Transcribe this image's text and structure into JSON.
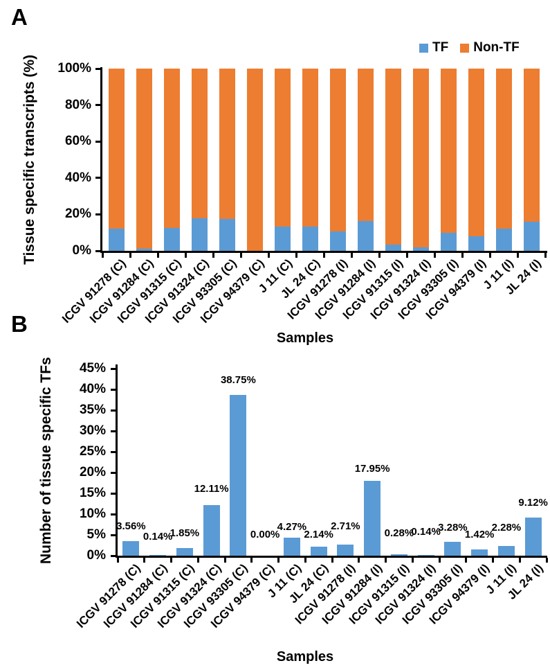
{
  "panels": {
    "a": {
      "label": "A"
    },
    "b": {
      "label": "B"
    }
  },
  "colors": {
    "tf": "#5B9BD5",
    "non_tf": "#ED7D31",
    "axis": "#000000",
    "text": "#000000",
    "background": "#FFFFFF"
  },
  "chart_data": [
    {
      "id": "tissue-specific-transcripts",
      "type": "bar",
      "subtype": "100-percent-stacked",
      "title": "",
      "ylabel": "Tissue specific transcripts (%)",
      "xlabel": "Samples",
      "ylim": [
        0,
        100
      ],
      "ytick_step": 20,
      "ytick_labels": [
        "0%",
        "20%",
        "40%",
        "60%",
        "80%",
        "100%"
      ],
      "grid": false,
      "legend_position": "top-right",
      "categories": [
        "ICGV 91278 (C)",
        "ICGV 91284 (C)",
        "ICGV 91315 (C)",
        "ICGV 91324 (C)",
        "ICGV 93305 (C)",
        "ICGV 94379 (C)",
        "J 11 (C)",
        "JL 24 (C)",
        "ICGV 91278 (I)",
        "ICGV 91284 (I)",
        "ICGV 91315 (I)",
        "ICGV 91324 (I)",
        "ICGV 93305 (I)",
        "ICGV 94379 (I)",
        "J 11 (I)",
        "JL 24 (I)"
      ],
      "series": [
        {
          "name": "TF",
          "color": "#5B9BD5",
          "values": [
            12,
            1,
            12.5,
            18,
            17.5,
            0,
            13.5,
            13.5,
            10.5,
            16.5,
            3.5,
            2,
            10,
            8,
            12,
            16
          ]
        },
        {
          "name": "Non-TF",
          "color": "#ED7D31",
          "values": [
            88,
            99,
            87.5,
            82,
            82.5,
            100,
            86.5,
            86.5,
            89.5,
            83.5,
            96.5,
            98,
            90,
            92,
            88,
            84
          ]
        }
      ]
    },
    {
      "id": "tissue-specific-tfs",
      "type": "bar",
      "title": "",
      "ylabel": "Number of tissue specific TFs",
      "xlabel": "Samples",
      "ylim": [
        0,
        45
      ],
      "ytick_step": 5,
      "ytick_labels": [
        "0%",
        "5%",
        "10%",
        "15%",
        "20%",
        "25%",
        "30%",
        "35%",
        "40%",
        "45%"
      ],
      "grid": false,
      "categories": [
        "ICGV 91278 (C)",
        "ICGV 91284 (C)",
        "ICGV 91315 (C)",
        "ICGV 91324 (C)",
        "ICGV 93305 (C)",
        "ICGV 94379 (C)",
        "J 11 (C)",
        "JL 24 (C)",
        "ICGV 91278 (I)",
        "ICGV 91284 (I)",
        "ICGV 91315 (I)",
        "ICGV 91324 (I)",
        "ICGV 93305 (I)",
        "ICGV 94379 (I)",
        "J 11 (I)",
        "JL 24 (I)"
      ],
      "series": [
        {
          "name": "TF",
          "color": "#5B9BD5",
          "values": [
            3.56,
            0.14,
            1.85,
            12.11,
            38.75,
            0,
            4.27,
            2.14,
            2.71,
            17.95,
            0.28,
            0.14,
            3.28,
            1.42,
            2.28,
            9.12
          ]
        }
      ],
      "bar_labels": [
        "3.56%",
        "0.14%",
        "1.85%",
        "12.11%",
        "38.75%",
        "0.00%",
        "4.27%",
        "2.14%",
        "2.71%",
        "17.95%",
        "0.28%",
        "0.14%",
        "3.28%",
        "1.42%",
        "2.28%",
        "9.12%"
      ]
    }
  ]
}
